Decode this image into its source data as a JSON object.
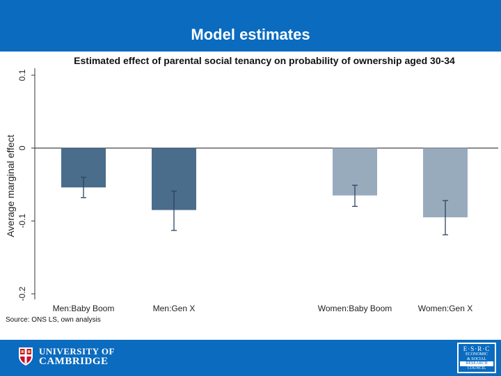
{
  "slide": {
    "title": "Model estimates"
  },
  "chart_data": {
    "type": "bar",
    "title": "Estimated effect of parental social tenancy on probability of ownership aged 30-34",
    "xlabel": "",
    "ylabel": "Average marginal effect",
    "ylim": [
      -0.2,
      0.1
    ],
    "yticks": [
      -0.2,
      -0.1,
      0,
      0.1
    ],
    "ytick_labels": [
      "-0.2",
      "-0.1",
      "0",
      "0.1"
    ],
    "grid": false,
    "categories": [
      "Men:Baby Boom",
      "Men:Gen X",
      "Women:Baby Boom",
      "Women:Gen X"
    ],
    "values": [
      -0.054,
      -0.085,
      -0.065,
      -0.095
    ],
    "error_low": [
      -0.068,
      -0.113,
      -0.08,
      -0.119
    ],
    "error_high": [
      -0.04,
      -0.059,
      -0.051,
      -0.072
    ],
    "colors": [
      "#4a6d8c",
      "#4a6d8c",
      "#97abbd",
      "#97abbd"
    ]
  },
  "source": "Source: ONS LS, own analysis",
  "footer": {
    "university_line1": "UNIVERSITY OF",
    "university_line2": "CAMBRIDGE",
    "esrc_abbr": "E·S·R·C",
    "esrc_line1": "ECONOMIC",
    "esrc_line2": "& SOCIAL",
    "esrc_line3": "RESEARCH",
    "esrc_line4": "COUNCIL"
  }
}
